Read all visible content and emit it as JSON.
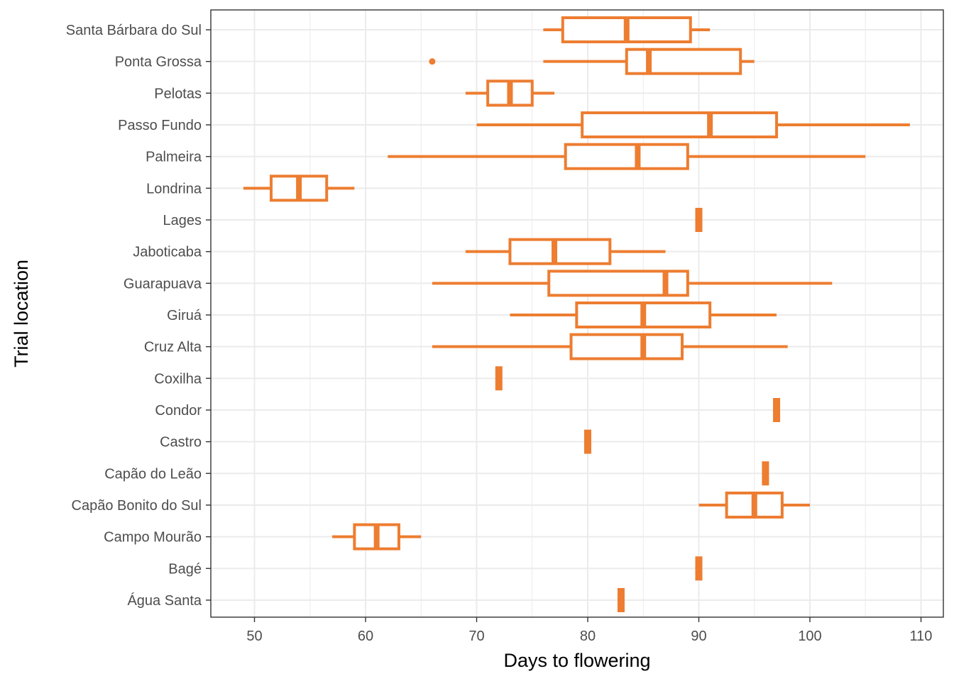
{
  "chart_data": {
    "type": "boxplot",
    "orientation": "horizontal",
    "title": "",
    "xlabel": "Days to flowering",
    "ylabel": "Trial location",
    "xlim": [
      46,
      112
    ],
    "x_ticks": [
      50,
      60,
      70,
      80,
      90,
      100,
      110
    ],
    "x_minor_ticks": [
      55,
      65,
      75,
      85,
      95,
      105
    ],
    "grid": true,
    "legend": "none",
    "color": "#ED7D31",
    "categories": [
      "Santa Bárbara do Sul",
      "Ponta Grossa",
      "Pelotas",
      "Passo Fundo",
      "Palmeira",
      "Londrina",
      "Lages",
      "Jaboticaba",
      "Guarapuava",
      "Giruá",
      "Cruz Alta",
      "Coxilha",
      "Condor",
      "Castro",
      "Capão do Leão",
      "Capão Bonito do Sul",
      "Campo Mourão",
      "Bagé",
      "Água Santa"
    ],
    "series": [
      {
        "name": "Santa Bárbara do Sul",
        "min": 76,
        "q1": 77.75,
        "median": 83.5,
        "q3": 89.25,
        "max": 91,
        "outliers": []
      },
      {
        "name": "Ponta Grossa",
        "min": 76,
        "q1": 83.5,
        "median": 85.5,
        "q3": 93.75,
        "max": 95,
        "outliers": [
          66
        ]
      },
      {
        "name": "Pelotas",
        "min": 69,
        "q1": 71,
        "median": 73,
        "q3": 75,
        "max": 77,
        "outliers": []
      },
      {
        "name": "Passo Fundo",
        "min": 70,
        "q1": 79.5,
        "median": 91,
        "q3": 97,
        "max": 109,
        "outliers": []
      },
      {
        "name": "Palmeira",
        "min": 62,
        "q1": 78,
        "median": 84.5,
        "q3": 89,
        "max": 105,
        "outliers": []
      },
      {
        "name": "Londrina",
        "min": 49,
        "q1": 51.5,
        "median": 54,
        "q3": 56.5,
        "max": 59,
        "outliers": []
      },
      {
        "name": "Lages",
        "min": 90,
        "q1": 90,
        "median": 90,
        "q3": 90,
        "max": 90,
        "outliers": []
      },
      {
        "name": "Jaboticaba",
        "min": 69,
        "q1": 73,
        "median": 77,
        "q3": 82,
        "max": 87,
        "outliers": []
      },
      {
        "name": "Guarapuava",
        "min": 66,
        "q1": 76.5,
        "median": 87,
        "q3": 89,
        "max": 102,
        "outliers": []
      },
      {
        "name": "Giruá",
        "min": 73,
        "q1": 79,
        "median": 85,
        "q3": 91,
        "max": 97,
        "outliers": []
      },
      {
        "name": "Cruz Alta",
        "min": 66,
        "q1": 78.5,
        "median": 85,
        "q3": 88.5,
        "max": 98,
        "outliers": []
      },
      {
        "name": "Coxilha",
        "min": 72,
        "q1": 72,
        "median": 72,
        "q3": 72,
        "max": 72,
        "outliers": []
      },
      {
        "name": "Condor",
        "min": 97,
        "q1": 97,
        "median": 97,
        "q3": 97,
        "max": 97,
        "outliers": []
      },
      {
        "name": "Castro",
        "min": 80,
        "q1": 80,
        "median": 80,
        "q3": 80,
        "max": 80,
        "outliers": []
      },
      {
        "name": "Capão do Leão",
        "min": 96,
        "q1": 96,
        "median": 96,
        "q3": 96,
        "max": 96,
        "outliers": []
      },
      {
        "name": "Capão Bonito do Sul",
        "min": 90,
        "q1": 92.5,
        "median": 95,
        "q3": 97.5,
        "max": 100,
        "outliers": []
      },
      {
        "name": "Campo Mourão",
        "min": 57,
        "q1": 59,
        "median": 61,
        "q3": 63,
        "max": 65,
        "outliers": []
      },
      {
        "name": "Bagé",
        "min": 90,
        "q1": 90,
        "median": 90,
        "q3": 90,
        "max": 90,
        "outliers": []
      },
      {
        "name": "Água Santa",
        "min": 83,
        "q1": 83,
        "median": 83,
        "q3": 83,
        "max": 83,
        "outliers": []
      }
    ]
  }
}
